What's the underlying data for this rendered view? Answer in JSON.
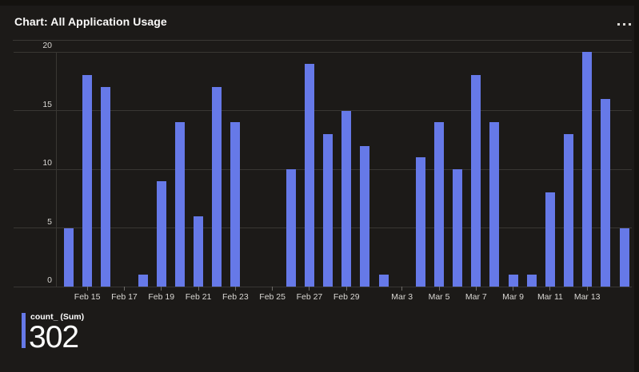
{
  "header": {
    "title": "Chart: All Application Usage",
    "menu_icon": "ellipsis-horizontal"
  },
  "chart_data": {
    "type": "bar",
    "title": "All Application Usage",
    "series_name": "count_ (Sum)",
    "x": [
      "Feb 14",
      "Feb 15",
      "Feb 16",
      "Feb 17",
      "Feb 18",
      "Feb 19",
      "Feb 20",
      "Feb 21",
      "Feb 22",
      "Feb 23",
      "Feb 24",
      "Feb 25",
      "Feb 26",
      "Feb 27",
      "Feb 28",
      "Feb 29",
      "Mar 1",
      "Mar 2",
      "Mar 3",
      "Mar 4",
      "Mar 5",
      "Mar 6",
      "Mar 7",
      "Mar 8",
      "Mar 9",
      "Mar 10",
      "Mar 11",
      "Mar 12",
      "Mar 13",
      "Mar 14",
      "Mar 15"
    ],
    "values": [
      5,
      18,
      17,
      0,
      1,
      9,
      14,
      6,
      17,
      14,
      0,
      0,
      10,
      19,
      13,
      15,
      12,
      1,
      0,
      11,
      14,
      10,
      18,
      14,
      1,
      1,
      8,
      13,
      20,
      16,
      5
    ],
    "total": 302,
    "ylim": [
      0,
      20
    ],
    "y_ticks": [
      0,
      5,
      10,
      15,
      20
    ],
    "x_tick_indices": [
      1,
      3,
      5,
      7,
      9,
      11,
      13,
      15,
      18,
      20,
      22,
      24,
      26,
      28
    ],
    "x_tick_labels": [
      "Feb 15",
      "Feb 17",
      "Feb 19",
      "Feb 21",
      "Feb 23",
      "Feb 25",
      "Feb 27",
      "Feb 29",
      "Mar 3",
      "Mar 5",
      "Mar 7",
      "Mar 9",
      "Mar 11",
      "Mar 13"
    ],
    "grid": "horizontal",
    "legend_position": "bottom-left",
    "bar_color": "#6679e8",
    "background_color": "#1c1a18",
    "gridline_color": "#393733"
  },
  "legend": {
    "series_label": "count_ (Sum)",
    "total_value": "302",
    "chip_color": "#6679e8"
  }
}
